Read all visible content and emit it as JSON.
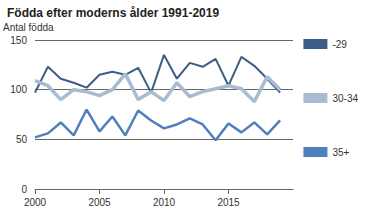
{
  "chart_data": {
    "type": "line",
    "title": "Födda efter moderns ålder 1991-2019",
    "y_label": "Antal födda",
    "x": [
      2000,
      2001,
      2002,
      2003,
      2004,
      2005,
      2006,
      2007,
      2008,
      2009,
      2010,
      2011,
      2012,
      2013,
      2014,
      2015,
      2016,
      2017,
      2018,
      2019
    ],
    "series": [
      {
        "name": "-29",
        "color": "#3b5e86",
        "values": [
          97,
          123,
          111,
          107,
          102,
          115,
          118,
          115,
          122,
          97,
          135,
          111,
          127,
          123,
          131,
          104,
          133,
          124,
          111,
          97
        ]
      },
      {
        "name": "30-34",
        "color": "#a9bbd0",
        "values": [
          109,
          104,
          90,
          100,
          98,
          94,
          100,
          116,
          90,
          98,
          89,
          107,
          93,
          98,
          101,
          104,
          101,
          88,
          113,
          100
        ]
      },
      {
        "name": "35+",
        "color": "#4f7fbd",
        "values": [
          52,
          56,
          67,
          54,
          80,
          58,
          73,
          54,
          79,
          69,
          61,
          65,
          71,
          65,
          49,
          66,
          57,
          67,
          55,
          69
        ]
      }
    ],
    "xlim": [
      2000,
      2020
    ],
    "xticks": [
      2000,
      2005,
      2010,
      2015
    ],
    "ylim": [
      0,
      150
    ],
    "yticks": [
      0,
      50,
      100,
      150
    ],
    "grid": true,
    "legend": "right"
  }
}
